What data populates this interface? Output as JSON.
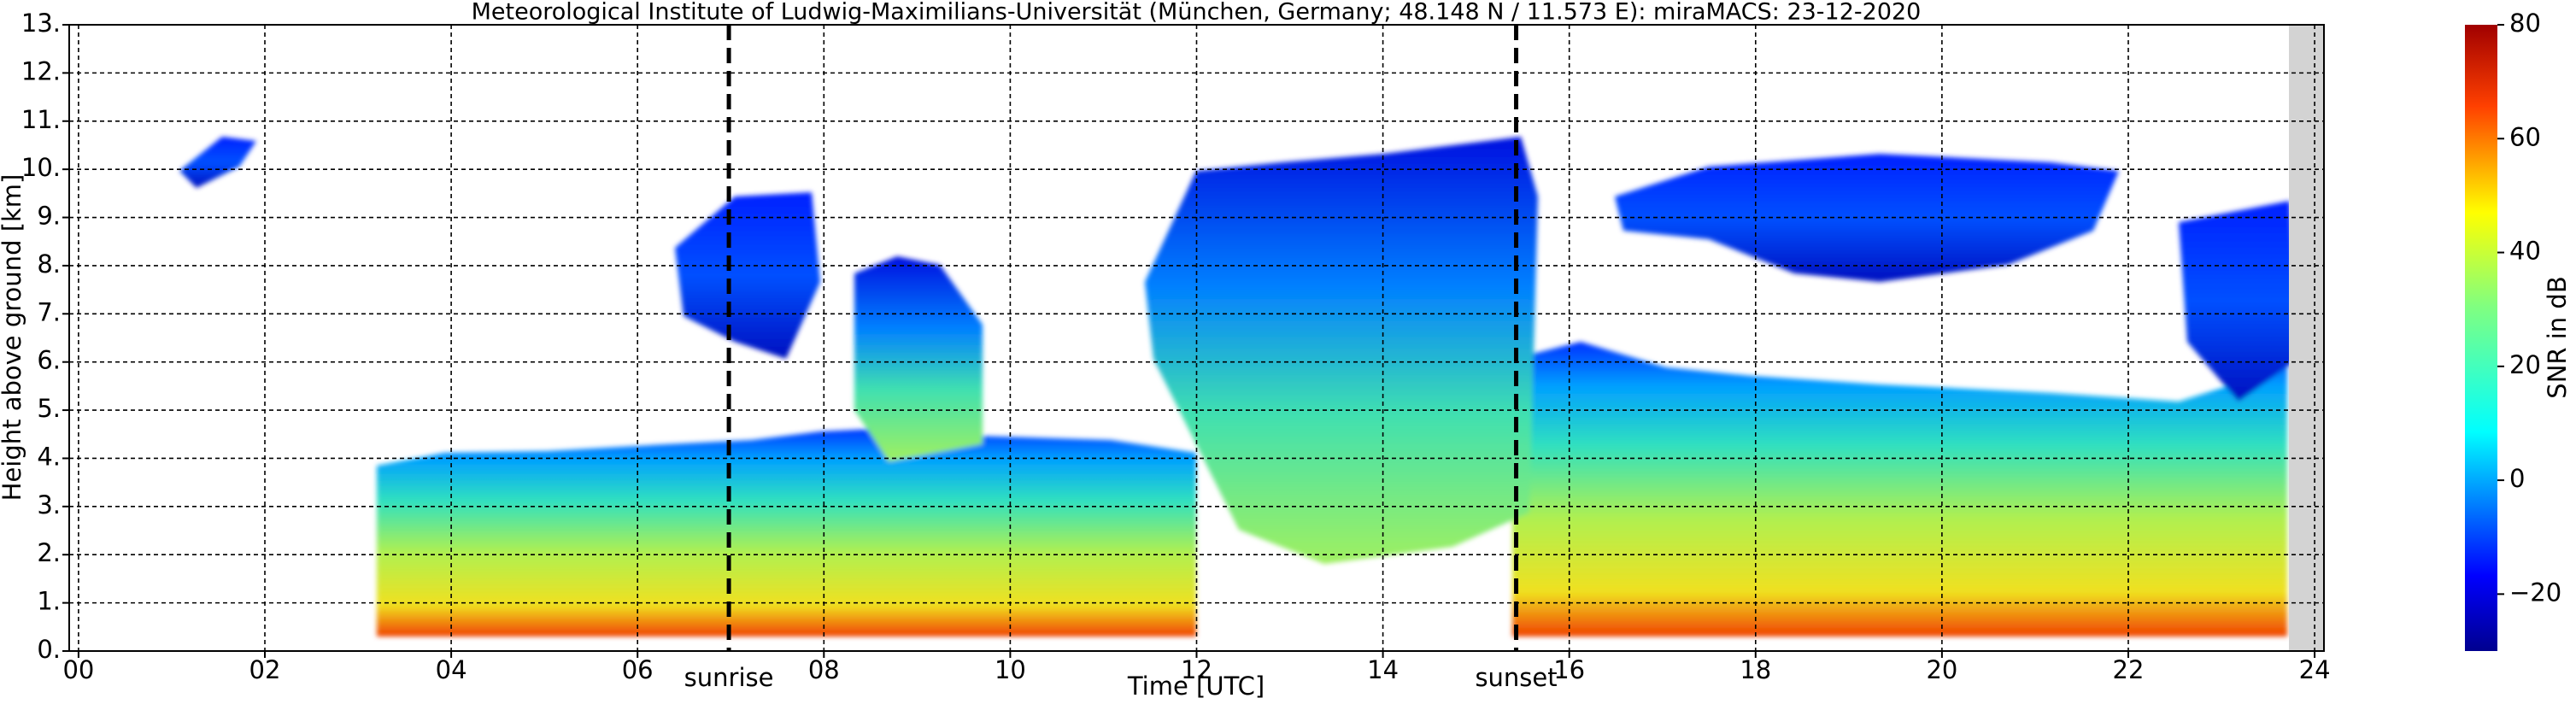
{
  "chart_data": {
    "type": "time-height",
    "title": "Meteorological Institute of Ludwig-Maximilians-Universität (München, Germany; 48.148 N / 11.573 E):    miraMACS: 23-12-2020",
    "x_label": "Time [UTC]",
    "y_label": "Height above ground [km]",
    "colorbar_label": "SNR in dB",
    "xlim": [
      -0.1,
      24.1
    ],
    "ylim": [
      0,
      13
    ],
    "xticks": [
      {
        "value": 0,
        "label": "00"
      },
      {
        "value": 2,
        "label": "02"
      },
      {
        "value": 4,
        "label": "04"
      },
      {
        "value": 6,
        "label": "06"
      },
      {
        "value": 8,
        "label": "08"
      },
      {
        "value": 10,
        "label": "10"
      },
      {
        "value": 12,
        "label": "12"
      },
      {
        "value": 14,
        "label": "14"
      },
      {
        "value": 16,
        "label": "16"
      },
      {
        "value": 18,
        "label": "18"
      },
      {
        "value": 20,
        "label": "20"
      },
      {
        "value": 22,
        "label": "22"
      },
      {
        "value": 24,
        "label": "24"
      }
    ],
    "yticks": [
      {
        "value": 0,
        "label": "0."
      },
      {
        "value": 1,
        "label": "1."
      },
      {
        "value": 2,
        "label": "2."
      },
      {
        "value": 3,
        "label": "3."
      },
      {
        "value": 4,
        "label": "4."
      },
      {
        "value": 5,
        "label": "5."
      },
      {
        "value": 6,
        "label": "6."
      },
      {
        "value": 7,
        "label": "7."
      },
      {
        "value": 8,
        "label": "8."
      },
      {
        "value": 9,
        "label": "9."
      },
      {
        "value": 10,
        "label": "10."
      },
      {
        "value": 11,
        "label": "11."
      },
      {
        "value": 12,
        "label": "12."
      },
      {
        "value": 13,
        "label": "13."
      }
    ],
    "clim": [
      -30,
      80
    ],
    "cticks": [
      {
        "value": -20,
        "label": "−20"
      },
      0,
      20,
      40,
      60,
      80
    ],
    "grid": true,
    "markers": [
      {
        "x": 6.98,
        "label": "sunrise"
      },
      {
        "x": 15.43,
        "label": "sunset"
      }
    ]
  }
}
